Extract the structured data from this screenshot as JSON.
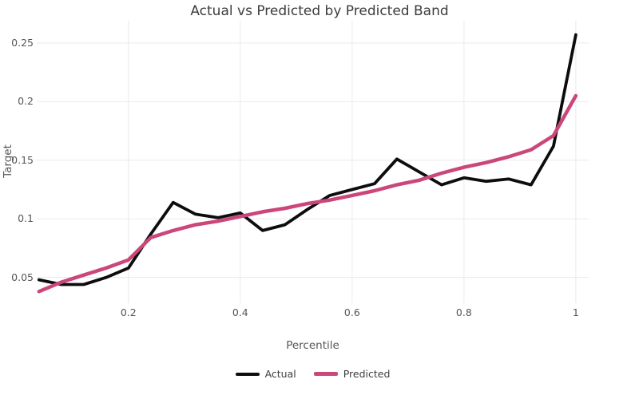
{
  "chart_data": {
    "type": "line",
    "title": "Actual vs Predicted by Predicted Band",
    "xlabel": "Percentile",
    "ylabel": "Target",
    "xlim": [
      0.036,
      1.023
    ],
    "ylim": [
      0.028,
      0.269
    ],
    "grid": true,
    "legend_position": "bottom-center",
    "x_ticks": {
      "values": [
        0.2,
        0.4,
        0.6,
        0.8,
        1.0
      ],
      "labels": [
        "0.2",
        "0.4",
        "0.6",
        "0.8",
        "1"
      ]
    },
    "y_ticks": {
      "values": [
        0.05,
        0.1,
        0.15,
        0.2,
        0.25
      ],
      "labels": [
        "0.05",
        "0.1",
        "0.15",
        "0.2",
        "0.25"
      ]
    },
    "x": [
      0.04,
      0.08,
      0.12,
      0.16,
      0.2,
      0.24,
      0.28,
      0.32,
      0.36,
      0.4,
      0.44,
      0.48,
      0.52,
      0.56,
      0.6,
      0.64,
      0.68,
      0.72,
      0.76,
      0.8,
      0.84,
      0.88,
      0.92,
      0.96,
      1.0
    ],
    "series": [
      {
        "name": "Actual",
        "color": "#0d0d0d",
        "line_width": 3.8,
        "values": [
          0.048,
          0.044,
          0.044,
          0.05,
          0.058,
          0.087,
          0.114,
          0.104,
          0.101,
          0.105,
          0.09,
          0.095,
          0.108,
          0.12,
          0.125,
          0.13,
          0.151,
          0.14,
          0.129,
          0.135,
          0.132,
          0.134,
          0.129,
          0.162,
          0.257
        ]
      },
      {
        "name": "Predicted",
        "color": "#cb4779",
        "line_width": 4.5,
        "values": [
          0.038,
          0.046,
          0.052,
          0.058,
          0.065,
          0.084,
          0.09,
          0.095,
          0.098,
          0.102,
          0.106,
          0.109,
          0.113,
          0.116,
          0.12,
          0.124,
          0.129,
          0.133,
          0.139,
          0.144,
          0.148,
          0.153,
          0.159,
          0.171,
          0.205
        ]
      }
    ]
  },
  "colors": {
    "background": "#ffffff",
    "gridline": "#eaeaea",
    "title_text": "#3c3c3c",
    "tick_text": "#565656",
    "axis_title_text": "#565656",
    "legend_text": "#3c3c3c"
  }
}
